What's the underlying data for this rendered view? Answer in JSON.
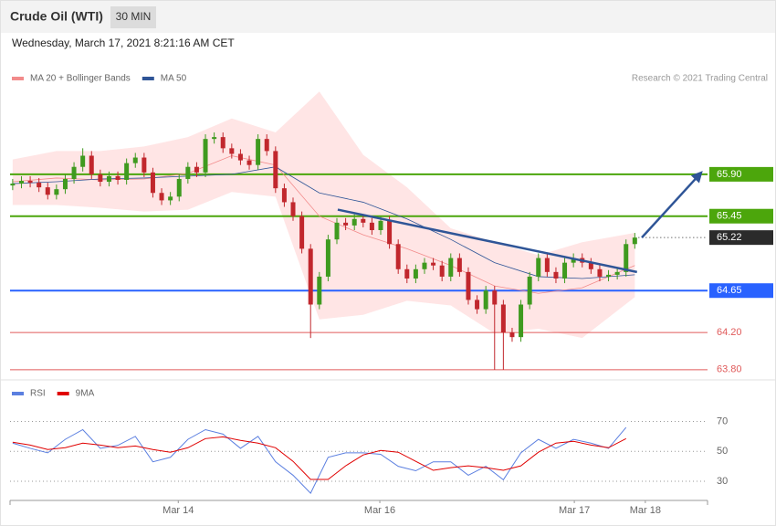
{
  "header": {
    "title": "Crude Oil (WTI)",
    "timeframe": "30 MIN",
    "timestamp": "Wednesday, March 17, 2021 8:21:16 AM CET"
  },
  "chart_data": [
    {
      "type": "candlestick",
      "credit": "Research © 2021 Trading Central",
      "xlim": [
        -0.3,
        79.3
      ],
      "ylim": [
        63.7,
        66.9
      ],
      "up_color": "#3f9a1f",
      "down_color": "#c1272d",
      "open": [
        65.78,
        65.8,
        65.83,
        65.81,
        65.76,
        65.68,
        65.74,
        65.85,
        65.98,
        66.1,
        65.9,
        65.82,
        65.88,
        65.84,
        66.02,
        66.08,
        65.92,
        65.7,
        65.62,
        65.66,
        65.85,
        65.98,
        65.92,
        66.28,
        66.3,
        66.18,
        66.12,
        66.05,
        66.0,
        66.28,
        66.15,
        65.75,
        65.6,
        65.45,
        65.1,
        64.5,
        64.8,
        65.2,
        65.38,
        65.35,
        65.42,
        65.38,
        65.3,
        65.4,
        65.15,
        64.88,
        64.78,
        64.88,
        64.95,
        64.92,
        64.8,
        65.0,
        64.85,
        64.55,
        64.45,
        64.65,
        64.5,
        64.2,
        64.15,
        64.5,
        64.8,
        65.0,
        64.85,
        64.78,
        64.95,
        65.0,
        64.95,
        64.88,
        64.8,
        64.82,
        64.85,
        65.15
      ],
      "high": [
        65.85,
        65.88,
        65.88,
        65.86,
        65.81,
        65.79,
        65.9,
        66.03,
        66.18,
        66.15,
        65.95,
        65.93,
        65.93,
        66.07,
        66.13,
        66.13,
        65.97,
        65.75,
        65.71,
        65.9,
        66.03,
        66.03,
        66.33,
        66.35,
        66.35,
        66.23,
        66.17,
        66.1,
        66.33,
        66.33,
        66.2,
        65.8,
        65.65,
        65.5,
        65.15,
        64.85,
        65.25,
        65.43,
        65.43,
        65.47,
        65.47,
        65.43,
        65.45,
        65.45,
        65.2,
        64.93,
        64.93,
        65.0,
        65.0,
        64.97,
        65.05,
        65.05,
        64.9,
        64.6,
        64.7,
        64.7,
        64.55,
        64.25,
        64.55,
        64.85,
        65.05,
        65.05,
        64.9,
        65.0,
        65.05,
        65.05,
        65.0,
        64.93,
        64.87,
        64.9,
        65.2,
        65.27
      ],
      "low": [
        65.73,
        65.75,
        65.76,
        65.71,
        65.63,
        65.63,
        65.69,
        65.8,
        65.93,
        65.85,
        65.77,
        65.77,
        65.79,
        65.79,
        65.97,
        65.87,
        65.65,
        65.57,
        65.57,
        65.61,
        65.8,
        65.87,
        65.87,
        66.23,
        66.13,
        66.07,
        66.0,
        65.95,
        65.95,
        66.1,
        65.7,
        65.55,
        65.4,
        65.05,
        64.14,
        64.45,
        64.75,
        65.15,
        65.3,
        65.3,
        65.33,
        65.25,
        65.25,
        65.1,
        64.83,
        64.73,
        64.73,
        64.83,
        64.87,
        64.75,
        64.75,
        64.8,
        64.5,
        64.4,
        64.4,
        63.8,
        63.8,
        64.1,
        64.1,
        64.45,
        64.75,
        64.8,
        64.73,
        64.73,
        64.9,
        64.9,
        64.83,
        64.75,
        64.75,
        64.77,
        64.8,
        65.1
      ],
      "close": [
        65.8,
        65.83,
        65.81,
        65.76,
        65.68,
        65.74,
        65.85,
        65.98,
        66.1,
        65.9,
        65.82,
        65.88,
        65.84,
        66.02,
        66.08,
        65.92,
        65.7,
        65.62,
        65.66,
        65.85,
        65.98,
        65.92,
        66.28,
        66.3,
        66.18,
        66.12,
        66.05,
        66.0,
        66.28,
        66.15,
        65.75,
        65.6,
        65.45,
        65.1,
        64.5,
        64.8,
        65.2,
        65.38,
        65.35,
        65.42,
        65.38,
        65.3,
        65.4,
        65.15,
        64.88,
        64.78,
        64.88,
        64.95,
        64.92,
        64.8,
        65.0,
        64.85,
        64.55,
        64.45,
        64.65,
        64.5,
        64.2,
        64.15,
        64.5,
        64.8,
        65.0,
        64.85,
        64.78,
        64.95,
        65.0,
        64.95,
        64.88,
        64.8,
        64.82,
        64.85,
        65.15,
        65.22
      ],
      "series_x": [
        0,
        5,
        10,
        15,
        20,
        25,
        30,
        35,
        40,
        45,
        50,
        55,
        60,
        65,
        71
      ],
      "series": [
        {
          "name": "MA 20 + Bollinger Bands",
          "color": "#f28b8b",
          "band_color": "#ffdede",
          "values": [
            65.82,
            65.86,
            65.84,
            65.85,
            65.91,
            66.1,
            66.0,
            65.45,
            65.25,
            65.1,
            64.92,
            64.7,
            64.62,
            64.68,
            64.92
          ],
          "upper": [
            66.06,
            66.15,
            66.15,
            66.2,
            66.3,
            66.5,
            66.35,
            66.79,
            66.11,
            65.76,
            65.32,
            65.17,
            65.03,
            65.17,
            65.27
          ],
          "lower": [
            65.57,
            65.57,
            65.54,
            65.5,
            65.52,
            65.71,
            65.66,
            64.34,
            64.39,
            64.54,
            64.49,
            64.19,
            64.24,
            64.14,
            64.58
          ]
        },
        {
          "name": "MA 50",
          "color": "#2f5597",
          "values": [
            65.8,
            65.82,
            65.85,
            65.86,
            65.88,
            65.9,
            65.98,
            65.7,
            65.6,
            65.42,
            65.2,
            64.95,
            64.8,
            64.78,
            64.82
          ]
        }
      ],
      "levels": [
        {
          "value": 65.9,
          "label": "65.90",
          "color": "#4ca60c",
          "box": true
        },
        {
          "value": 65.45,
          "label": "65.45",
          "color": "#4ca60c",
          "box": true
        },
        {
          "value": 65.22,
          "label": "65.22",
          "color": "#2b2b2b",
          "box": true,
          "dotted": true
        },
        {
          "value": 64.65,
          "label": "64.65",
          "color": "#2962ff",
          "box": true
        },
        {
          "value": 64.2,
          "label": "64.20",
          "color": "#e05a5a",
          "box": false
        },
        {
          "value": 63.8,
          "label": "63.80",
          "color": "#e05a5a",
          "box": false
        }
      ],
      "trendlines": [
        {
          "x": [
            37.1,
            71.25
          ],
          "y": [
            65.52,
            64.85
          ],
          "color": "#2f5597"
        },
        {
          "x": [
            71.8,
            78.4
          ],
          "y": [
            65.22,
            65.9
          ],
          "color": "#2f5597",
          "arrow": true
        }
      ]
    },
    {
      "type": "line",
      "xlim": [
        -0.3,
        79.3
      ],
      "ylim": [
        19,
        77
      ],
      "yticks": [
        30,
        50,
        70
      ],
      "grid": true,
      "x": [
        0,
        2,
        4,
        6,
        8,
        10,
        12,
        14,
        16,
        18,
        20,
        22,
        24,
        26,
        28,
        30,
        32,
        34,
        36,
        38,
        40,
        42,
        44,
        46,
        48,
        50,
        52,
        54,
        56,
        58,
        60,
        62,
        64,
        66,
        68,
        70
      ],
      "xticks": [
        {
          "value": 18.9,
          "label": "Mar 14"
        },
        {
          "value": 41.9,
          "label": "Mar 16"
        },
        {
          "value": 64.1,
          "label": "Mar 17"
        },
        {
          "value": 72.2,
          "label": "Mar 18"
        }
      ],
      "series": [
        {
          "name": "RSI",
          "color": "#5b7fe0",
          "values": [
            55.5,
            52,
            49,
            58,
            64.5,
            52,
            54,
            60,
            43,
            46,
            58,
            64.5,
            61.5,
            52,
            60,
            43,
            34,
            22,
            46,
            49,
            49,
            48,
            40,
            37,
            43,
            43,
            34,
            40,
            31,
            49,
            58,
            52,
            58,
            55.5,
            52,
            66
          ]
        },
        {
          "name": "9MA",
          "color": "#e00000",
          "values": [
            56.1,
            54.2,
            51.2,
            52.4,
            55.5,
            54.2,
            52.4,
            53.6,
            51.2,
            49.4,
            52.4,
            58.5,
            59.7,
            57.3,
            55.5,
            52.4,
            43.3,
            31.2,
            31.2,
            40.3,
            47.6,
            50.6,
            49.4,
            43.3,
            37.3,
            39.1,
            40.3,
            39.1,
            37.3,
            40.3,
            49.4,
            55.5,
            56.7,
            54.2,
            52.4,
            58.5
          ]
        }
      ]
    }
  ]
}
